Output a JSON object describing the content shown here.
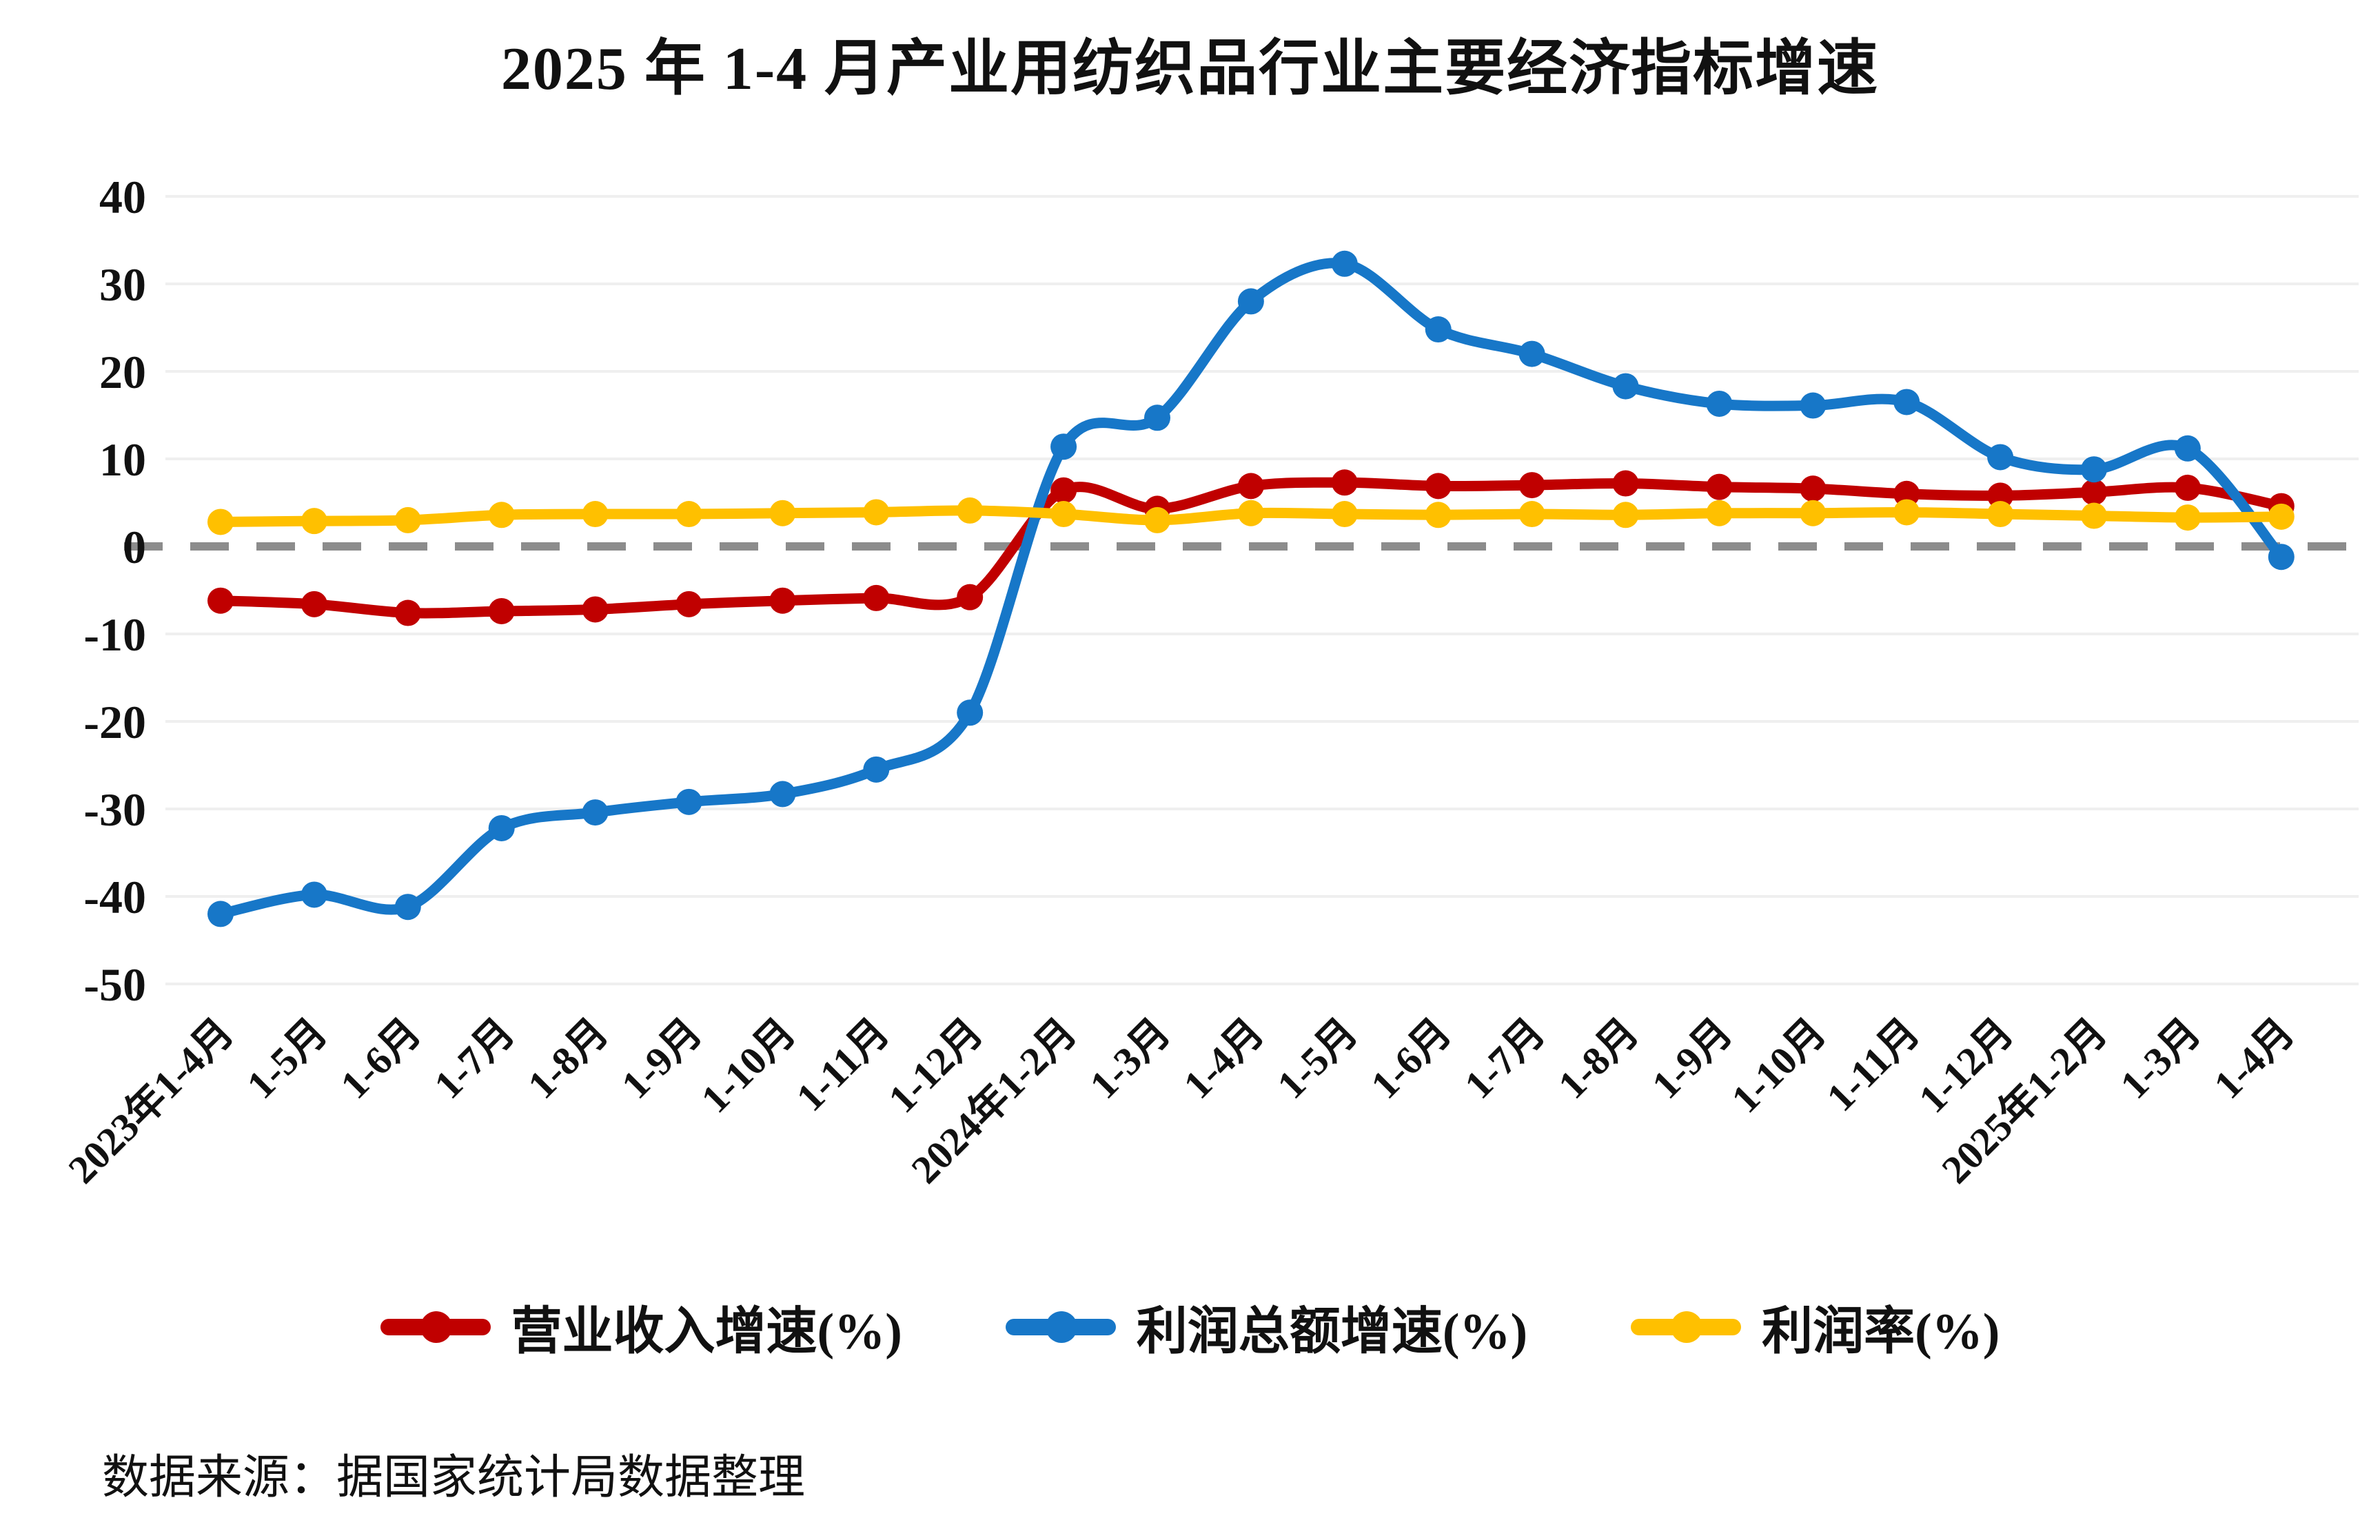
{
  "title": "2025 年 1-4 月产业用纺织品行业主要经济指标增速",
  "source_note": "数据来源：据国家统计局数据整理",
  "colors": {
    "revenue": "#c00000",
    "profit_total": "#1777c8",
    "profit_margin": "#ffc000",
    "zero_line": "#8c8c8c",
    "gridline": "#efefef",
    "text": "#111111"
  },
  "chart_data": {
    "type": "line",
    "title": "2025 年 1-4 月产业用纺织品行业主要经济指标增速",
    "xlabel": "",
    "ylabel": "",
    "ylim": [
      -50,
      40
    ],
    "ytick_step": 10,
    "ytick_labels": [
      "40",
      "30",
      "20",
      "10",
      "0",
      "-10",
      "-20",
      "-30",
      "-40",
      "-50"
    ],
    "grid": "horizontal-light",
    "zero_line_style": "dashed-gray",
    "legend_position": "bottom",
    "categories": [
      "2023年1-4月",
      "1-5月",
      "1-6月",
      "1-7月",
      "1-8月",
      "1-9月",
      "1-10月",
      "1-11月",
      "1-12月",
      "2024年1-2月",
      "1-3月",
      "1-4月",
      "1-5月",
      "1-6月",
      "1-7月",
      "1-8月",
      "1-9月",
      "1-10月",
      "1-11月",
      "1-12月",
      "2025年1-2月",
      "1-3月",
      "1-4月"
    ],
    "series": [
      {
        "name": "营业收入增速(%)",
        "color_key": "revenue",
        "values": [
          -6.2,
          -6.6,
          -7.6,
          -7.4,
          -7.2,
          -6.6,
          -6.2,
          -5.9,
          -5.8,
          6.4,
          4.3,
          6.9,
          7.3,
          6.9,
          7.0,
          7.2,
          6.8,
          6.6,
          6.0,
          5.8,
          6.2,
          6.7,
          4.6
        ]
      },
      {
        "name": "利润总额增速(%)",
        "color_key": "profit_total",
        "values": [
          -42.0,
          -39.8,
          -41.2,
          -32.2,
          -30.4,
          -29.2,
          -28.3,
          -25.5,
          -19.0,
          11.4,
          14.7,
          28.0,
          32.3,
          24.8,
          22.0,
          18.3,
          16.3,
          16.1,
          16.5,
          10.2,
          8.8,
          11.2,
          -1.2
        ]
      },
      {
        "name": "利润率(%)",
        "color_key": "profit_margin",
        "values": [
          2.8,
          2.9,
          3.0,
          3.6,
          3.7,
          3.7,
          3.8,
          3.9,
          4.1,
          3.7,
          3.0,
          3.8,
          3.7,
          3.6,
          3.7,
          3.6,
          3.8,
          3.8,
          3.9,
          3.7,
          3.5,
          3.3,
          3.4
        ]
      }
    ]
  }
}
